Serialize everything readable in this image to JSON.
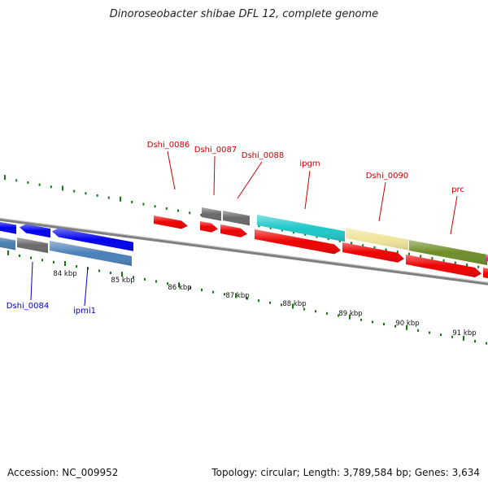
{
  "title": "Dinoroseobacter shibae DFL 12, complete genome",
  "footer": {
    "accession": "Accession: NC_009952",
    "summary": "Topology: circular; Length: 3,789,584 bp; Genes: 3,634"
  },
  "scale": {
    "unit": "kbp",
    "major_ticks": [
      "84 kbp",
      "85 kbp",
      "86 kbp",
      "87 kbp",
      "88 kbp",
      "89 kbp",
      "90 kbp",
      "91 kbp"
    ]
  },
  "gene_labels": [
    {
      "text": "Dshi_0086",
      "color": "#cc0000"
    },
    {
      "text": "Dshi_0087",
      "color": "#cc0000"
    },
    {
      "text": "Dshi_0088",
      "color": "#cc0000"
    },
    {
      "text": "ipgm",
      "color": "#cc0000"
    },
    {
      "text": "Dshi_0090",
      "color": "#cc0000"
    },
    {
      "text": "prc",
      "color": "#cc0000"
    },
    {
      "text": "Dshi_0084",
      "color": "#0000cc"
    },
    {
      "text": "ipmi1",
      "color": "#0000cc"
    }
  ],
  "colors": {
    "backbone": "#808080",
    "cds_forward": "#ee0000",
    "cds_reverse": "#0000ee",
    "gene_gray": "#6a6a6a",
    "gene_cyan": "#1fc8c8",
    "gene_khaki": "#efe49a",
    "gene_olive": "#6e8e28",
    "gene_steelblue": "#4a80b8",
    "gene_magenta": "#e020a0",
    "tick_green": "#117a11"
  }
}
